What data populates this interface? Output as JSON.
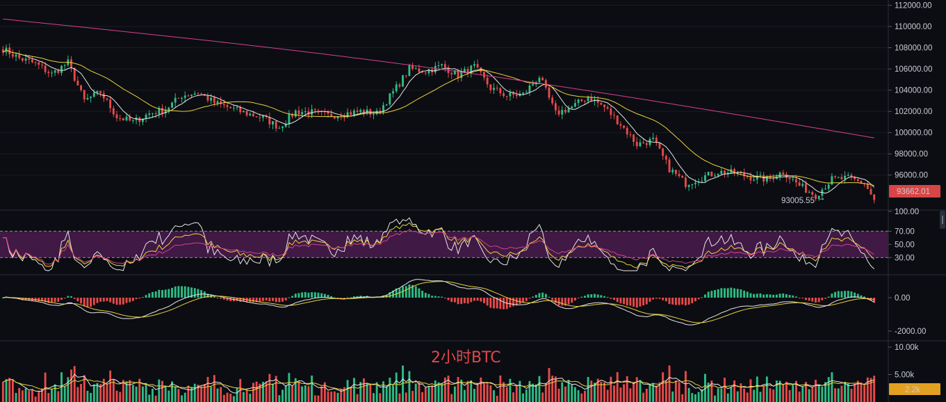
{
  "chart_data": [
    {
      "type": "candlestick",
      "annotations": {
        "low_label": "93005.55",
        "low_arrow": "→",
        "last_price_label": "93662.01"
      },
      "price_axis": {
        "tick_labels": [
          "112000.00",
          "110000.00",
          "108000.00",
          "106000.00",
          "104000.00",
          "102000.00",
          "100000.00",
          "98000.00",
          "96000.00"
        ],
        "ylim": [
          93100,
          112100
        ]
      },
      "anchors": [
        [
          0,
          107900
        ],
        [
          5,
          107000
        ],
        [
          10,
          106500
        ],
        [
          15,
          105500
        ],
        [
          20,
          106600
        ],
        [
          25,
          103000
        ],
        [
          30,
          103800
        ],
        [
          35,
          101500
        ],
        [
          40,
          101000
        ],
        [
          45,
          101800
        ],
        [
          50,
          102200
        ],
        [
          55,
          103500
        ],
        [
          60,
          103800
        ],
        [
          65,
          102800
        ],
        [
          70,
          102300
        ],
        [
          75,
          101800
        ],
        [
          80,
          101400
        ],
        [
          85,
          100500
        ],
        [
          90,
          102000
        ],
        [
          95,
          101900
        ],
        [
          100,
          101600
        ],
        [
          105,
          101800
        ],
        [
          110,
          102000
        ],
        [
          115,
          101800
        ],
        [
          120,
          103800
        ],
        [
          125,
          106000
        ],
        [
          130,
          105800
        ],
        [
          135,
          106300
        ],
        [
          140,
          105400
        ],
        [
          145,
          106200
        ],
        [
          150,
          104200
        ],
        [
          155,
          103500
        ],
        [
          160,
          103600
        ],
        [
          165,
          105300
        ],
        [
          170,
          101800
        ],
        [
          175,
          102400
        ],
        [
          180,
          103400
        ],
        [
          185,
          102400
        ],
        [
          190,
          100800
        ],
        [
          195,
          98900
        ],
        [
          200,
          99300
        ],
        [
          205,
          96600
        ],
        [
          210,
          95200
        ],
        [
          215,
          95800
        ],
        [
          220,
          96300
        ],
        [
          225,
          96200
        ],
        [
          230,
          95800
        ],
        [
          235,
          95600
        ],
        [
          240,
          96300
        ],
        [
          245,
          95000
        ],
        [
          250,
          94100
        ],
        [
          255,
          95600
        ],
        [
          260,
          95700
        ],
        [
          265,
          95200
        ],
        [
          268,
          93662
        ]
      ],
      "moving_averages": [
        "MA7",
        "MA25",
        "MA99"
      ],
      "ma99_endpoints": [
        110700,
        99500
      ],
      "colors": {
        "up": "#2ebd85",
        "down": "#e84a4a",
        "ma_fast": "#e6e6e6",
        "ma_mid": "#ecd33a",
        "ma_slow": "#d8408f"
      }
    },
    {
      "type": "line",
      "indicator": "RSI",
      "tick_labels": [
        "100.00",
        "70.00",
        "50.00",
        "30.00"
      ],
      "ylim": [
        5,
        100
      ],
      "band": [
        30,
        70
      ],
      "band_color": "#4a1c4f"
    },
    {
      "type": "histogram",
      "indicator": "MACD",
      "tick_labels": [
        "0.00",
        "-2000.00"
      ],
      "ylim": [
        -2500,
        1250
      ]
    },
    {
      "type": "bar",
      "indicator": "Volume",
      "title": "2小时BTC",
      "tick_labels": [
        "10.00k",
        "5.00k"
      ],
      "last_volume_label": "2.2k",
      "ylim": [
        0,
        10500
      ]
    }
  ]
}
